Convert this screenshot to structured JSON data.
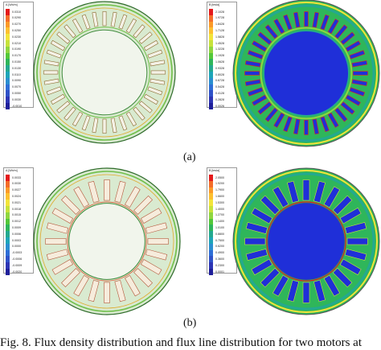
{
  "panels": [
    {
      "id": "a-left",
      "legend": {
        "title": "A [Wb/m]",
        "ticks": [
          "0.0310",
          "0.0290",
          "0.0270",
          "0.0250",
          "0.0230",
          "0.0210",
          "0.0190",
          "0.0170",
          "0.0150",
          "0.0130",
          "0.0110",
          "0.0090",
          "0.0070",
          "0.0050",
          "0.0030",
          "-0.0010"
        ]
      }
    },
    {
      "id": "a-right",
      "legend": {
        "title": "B [tesla]",
        "ticks": [
          "2.1028",
          "1.9728",
          "1.8428",
          "1.7128",
          "1.5828",
          "1.4528",
          "1.3228",
          "1.1928",
          "1.0628",
          "0.9328",
          "0.8028",
          "0.6728",
          "0.5428",
          "0.4128",
          "0.2828",
          "0.0026"
        ]
      }
    },
    {
      "id": "b-left",
      "legend": {
        "title": "A [Wb/m]",
        "ticks": [
          "0.0033",
          "0.0030",
          "0.0027",
          "0.0024",
          "0.0021",
          "0.0018",
          "0.0015",
          "0.0012",
          "0.0009",
          "0.0006",
          "0.0003",
          "0.0000",
          "-0.0003",
          "-0.0006",
          "-0.0009",
          "-0.0020"
        ]
      }
    },
    {
      "id": "b-right",
      "legend": {
        "title": "B [tesla]",
        "ticks": [
          "2.0500",
          "1.9200",
          "1.7900",
          "1.6600",
          "1.5300",
          "1.4000",
          "1.2700",
          "1.1400",
          "1.0100",
          "0.8800",
          "0.7500",
          "0.6200",
          "0.4900",
          "0.3600",
          "0.2300",
          "0.0001"
        ]
      }
    }
  ],
  "labels": {
    "a": "(a)",
    "b": "(b)"
  },
  "caption": "Fig. 8.   Flux density distribution and flux line distribution for two motors at",
  "colors": {
    "scale": [
      "#e41a1c",
      "#f46d2a",
      "#fb9a29",
      "#fdc030",
      "#f3e43a",
      "#c7e23b",
      "#8fd640",
      "#54c83a",
      "#2fb65a",
      "#24a98f",
      "#1ea5b8",
      "#2a8fd0",
      "#2e6ed6",
      "#2f52c8",
      "#2d35b4",
      "#1f1f9a"
    ],
    "fieldBlue": "#1f2fd8",
    "paleFill": "#eaf2e4",
    "ringLine": "#3f8a3c"
  }
}
